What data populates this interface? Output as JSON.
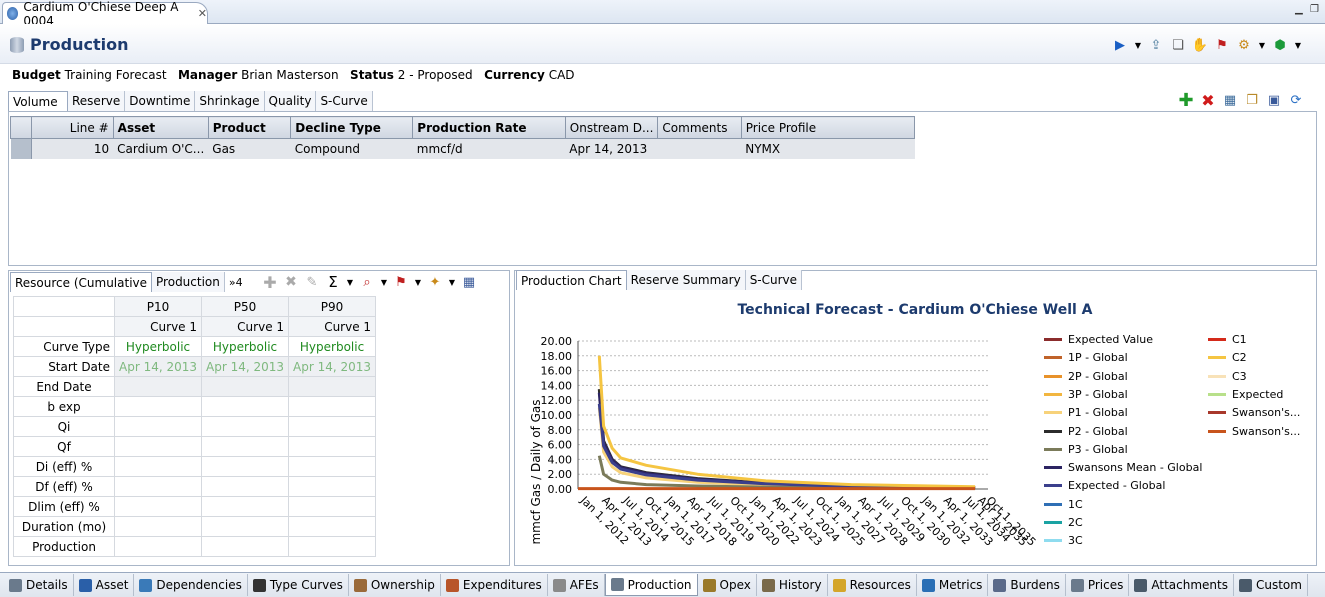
{
  "editor_tab": {
    "title": "Cardium O'Chiese Deep A 0004"
  },
  "page": {
    "title": "Production"
  },
  "info": {
    "budget_label": "Budget",
    "budget_value": "Training Forecast",
    "manager_label": "Manager",
    "manager_value": "Brian Masterson",
    "status_label": "Status",
    "status_value": "2 - Proposed",
    "currency_label": "Currency",
    "currency_value": "CAD"
  },
  "sub_tabs": [
    "Volume",
    "Reserve",
    "Downtime",
    "Shrinkage",
    "Quality",
    "S-Curve"
  ],
  "volume_table": {
    "headers": [
      "Line #",
      "Asset",
      "Product",
      "Decline Type",
      "Production Rate",
      "Onstream D...",
      "Comments",
      "Price Profile"
    ],
    "rows": [
      [
        "10",
        "Cardium O'C...",
        "Gas",
        "Compound",
        "mmcf/d",
        "Apr 14, 2013",
        "",
        "NYMX"
      ]
    ]
  },
  "resource_panel": {
    "tabs": [
      "Resource (Cumulative",
      "Production",
      "»4"
    ],
    "columns": [
      "P10",
      "P50",
      "P90"
    ],
    "curve_row": [
      "Curve 1",
      "Curve 1",
      "Curve 1"
    ],
    "row_labels": [
      "Curve Type",
      "Start Date",
      "End Date",
      "b exp",
      "Qi",
      "Qf",
      "Di (eff) %",
      "Df (eff) %",
      "Dlim (eff) %",
      "Duration (mo)",
      "Production"
    ],
    "curve_type": [
      "Hyperbolic",
      "Hyperbolic",
      "Hyperbolic"
    ],
    "start_date": [
      "Apr 14, 2013",
      "Apr 14, 2013",
      "Apr 14, 2013"
    ]
  },
  "chart_panel": {
    "tabs": [
      "Production Chart",
      "Reserve Summary",
      "S-Curve"
    ]
  },
  "chart_data": {
    "type": "line",
    "title": "Technical Forecast - Cardium O'Chiese Well A",
    "ylabel": "mmcf Gas / Daily of Gas",
    "xlabel": "",
    "ylim": [
      0,
      20
    ],
    "yticks": [
      "0.00",
      "2.00",
      "4.00",
      "6.00",
      "8.00",
      "10.00",
      "12.00",
      "14.00",
      "16.00",
      "18.00",
      "20.00"
    ],
    "xticks": [
      "Jan 1, 2012",
      "Apr 1, 2013",
      "Jul 1, 2014",
      "Oct 1, 2015",
      "Jan 1, 2017",
      "Apr 1, 2018",
      "Jul 1, 2019",
      "Oct 1, 2020",
      "Jan 1, 2022",
      "Apr 1, 2023",
      "Jul 1, 2024",
      "Oct 1, 2025",
      "Jan 1, 2027",
      "Apr 1, 2028",
      "Jul 1, 2029",
      "Oct 1, 2030",
      "Jan 1, 2032",
      "Apr 1, 2033",
      "Jul 1, 2034",
      "Oct 1, 2035",
      "Apr 1, 2035"
    ],
    "grid": true,
    "legend_position": "right",
    "series": [
      {
        "name": "Expected Value",
        "color": "#8b2c2c",
        "x": [],
        "values": []
      },
      {
        "name": "1P - Global",
        "color": "#c0632a",
        "x": [],
        "values": []
      },
      {
        "name": "2P - Global",
        "color": "#e8922a",
        "x": [],
        "values": []
      },
      {
        "name": "3P - Global",
        "color": "#f2b640",
        "x": [],
        "values": []
      },
      {
        "name": "P1 - Global",
        "color": "#f7d27a",
        "x": [
          "Apr 1, 2013",
          "Jul 1, 2013",
          "Jan 1, 2014",
          "Jul 1, 2014",
          "Jan 1, 2016",
          "Jan 1, 2019",
          "Jan 1, 2023",
          "Jan 1, 2028",
          "Apr 1, 2035"
        ],
        "values": [
          11.0,
          5.0,
          3.0,
          2.2,
          1.5,
          0.9,
          0.5,
          0.2,
          0.1
        ]
      },
      {
        "name": "P2 - Global",
        "color": "#2b2b2b",
        "x": [
          "Apr 1, 2013",
          "Jul 1, 2013",
          "Jan 1, 2014",
          "Jul 1, 2014",
          "Jan 1, 2016",
          "Jan 1, 2019",
          "Jan 1, 2023",
          "Jan 1, 2028",
          "Apr 1, 2035"
        ],
        "values": [
          13.5,
          6.5,
          4.0,
          3.0,
          2.2,
          1.4,
          0.8,
          0.4,
          0.2
        ]
      },
      {
        "name": "P3 - Global",
        "color": "#7b7b5a",
        "x": [
          "Apr 1, 2013",
          "Jul 1, 2013",
          "Jan 1, 2014",
          "Jul 1, 2014",
          "Jan 1, 2016",
          "Jan 1, 2019",
          "Jan 1, 2023",
          "Jan 1, 2028",
          "Apr 1, 2035"
        ],
        "values": [
          4.5,
          2.0,
          1.2,
          0.9,
          0.6,
          0.4,
          0.25,
          0.15,
          0.08
        ]
      },
      {
        "name": "Swansons Mean - Global",
        "color": "#2c2462",
        "x": [
          "Apr 1, 2013",
          "Jul 1, 2013",
          "Jan 1, 2014",
          "Jul 1, 2014",
          "Jan 1, 2016",
          "Jan 1, 2019",
          "Jan 1, 2023",
          "Jan 1, 2028",
          "Apr 1, 2035"
        ],
        "values": [
          13.0,
          6.2,
          3.9,
          2.9,
          2.1,
          1.3,
          0.8,
          0.4,
          0.2
        ]
      },
      {
        "name": "Expected - Global",
        "color": "#3b3f8c",
        "x": [
          "Apr 1, 2013",
          "Jul 1, 2013",
          "Jan 1, 2014",
          "Jul 1, 2014",
          "Jan 1, 2016",
          "Jan 1, 2019",
          "Jan 1, 2023",
          "Jan 1, 2028",
          "Apr 1, 2035"
        ],
        "values": [
          11.5,
          5.8,
          3.6,
          2.7,
          1.9,
          1.2,
          0.7,
          0.35,
          0.18
        ]
      },
      {
        "name": "1C",
        "color": "#2f6fb5",
        "x": [],
        "values": []
      },
      {
        "name": "2C",
        "color": "#1aa3a3",
        "x": [],
        "values": []
      },
      {
        "name": "3C",
        "color": "#8fdcef",
        "x": [],
        "values": []
      },
      {
        "name": "C1",
        "color": "#d42a1a",
        "x": [],
        "values": []
      },
      {
        "name": "C2",
        "color": "#f5c542",
        "x": [
          "Apr 1, 2013",
          "Jul 1, 2013",
          "Jan 1, 2014",
          "Jul 1, 2014",
          "Jan 1, 2016",
          "Jan 1, 2019",
          "Jan 1, 2023",
          "Jan 1, 2028",
          "Apr 1, 2035"
        ],
        "values": [
          18.0,
          8.5,
          5.5,
          4.2,
          3.2,
          2.0,
          1.1,
          0.6,
          0.3
        ]
      },
      {
        "name": "C3",
        "color": "#f8e2b8",
        "x": [],
        "values": []
      },
      {
        "name": "Expected",
        "color": "#b8e08a",
        "x": [],
        "values": []
      },
      {
        "name": "Swanson's...",
        "color": "#a8382b",
        "x": [],
        "values": []
      },
      {
        "name": "Swanson's...",
        "color": "#c8541c",
        "x": [
          "Jan 1, 2012",
          "Apr 1, 2035"
        ],
        "values": [
          0.05,
          0.05
        ]
      }
    ]
  },
  "bottom_tabs": [
    "Details",
    "Asset",
    "Dependencies",
    "Type Curves",
    "Ownership",
    "Expenditures",
    "AFEs",
    "Production",
    "Opex",
    "History",
    "Resources",
    "Metrics",
    "Burdens",
    "Prices",
    "Attachments",
    "Custom"
  ],
  "bottom_active": "Production",
  "colors": {
    "title_blue": "#1d3b6e",
    "green_text": "#1f8a1f"
  }
}
